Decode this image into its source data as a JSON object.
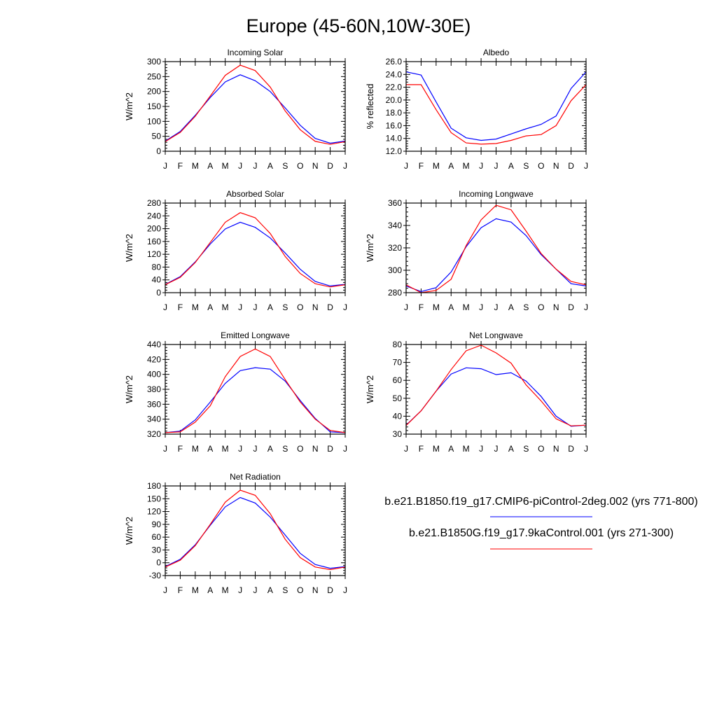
{
  "title": "Europe (45-60N,10W-30E)",
  "legend": {
    "entries": [
      {
        "label": "b.e21.B1850.f19_g17.CMIP6-piControl-2deg.002 (yrs 771-800)",
        "color": "#0000ff"
      },
      {
        "label": "b.e21.B1850G.f19_g17.9kaControl.001 (yrs 271-300)",
        "color": "#ff0000"
      }
    ]
  },
  "chart_data": [
    {
      "type": "line",
      "title": "Incoming Solar",
      "ylabel": "W/m^2",
      "categories": [
        "J",
        "F",
        "M",
        "A",
        "M",
        "J",
        "J",
        "A",
        "S",
        "O",
        "N",
        "D",
        "J"
      ],
      "ylim": [
        0,
        300
      ],
      "yticks": [
        "0",
        "50",
        "100",
        "150",
        "200",
        "250",
        "300"
      ],
      "series": [
        {
          "color": "#0000ff",
          "values": [
            34,
            66,
            120,
            180,
            232,
            256,
            236,
            200,
            145,
            87,
            43,
            27,
            34
          ]
        },
        {
          "color": "#ff0000",
          "values": [
            32,
            63,
            117,
            185,
            254,
            288,
            270,
            215,
            135,
            72,
            33,
            23,
            32
          ]
        }
      ]
    },
    {
      "type": "line",
      "title": "Albedo",
      "ylabel": "% reflected",
      "categories": [
        "J",
        "F",
        "M",
        "A",
        "M",
        "J",
        "J",
        "A",
        "S",
        "O",
        "N",
        "D",
        "J"
      ],
      "ylim": [
        12,
        26
      ],
      "yticks": [
        "12.0",
        "14.0",
        "16.0",
        "18.0",
        "20.0",
        "22.0",
        "24.0",
        "26.0"
      ],
      "series": [
        {
          "color": "#0000ff",
          "values": [
            24.4,
            23.9,
            19.7,
            15.6,
            14.1,
            13.7,
            13.9,
            14.7,
            15.5,
            16.2,
            17.5,
            21.8,
            24.4
          ]
        },
        {
          "color": "#ff0000",
          "values": [
            22.4,
            22.4,
            18.5,
            14.9,
            13.3,
            13.1,
            13.2,
            13.7,
            14.4,
            14.6,
            16.0,
            19.9,
            22.4
          ]
        }
      ]
    },
    {
      "type": "line",
      "title": "Absorbed Solar",
      "ylabel": "W/m^2",
      "categories": [
        "J",
        "F",
        "M",
        "A",
        "M",
        "J",
        "J",
        "A",
        "S",
        "O",
        "N",
        "D",
        "J"
      ],
      "ylim": [
        0,
        280
      ],
      "yticks": [
        "0",
        "40",
        "80",
        "120",
        "160",
        "200",
        "240",
        "280"
      ],
      "series": [
        {
          "color": "#0000ff",
          "values": [
            26,
            50,
            96,
            152,
            199,
            220,
            204,
            171,
            124,
            73,
            35,
            21,
            26
          ]
        },
        {
          "color": "#ff0000",
          "values": [
            25,
            48,
            94,
            157,
            220,
            250,
            234,
            185,
            113,
            60,
            28,
            18,
            25
          ]
        }
      ]
    },
    {
      "type": "line",
      "title": "Incoming Longwave",
      "ylabel": "W/m^2",
      "categories": [
        "J",
        "F",
        "M",
        "A",
        "M",
        "J",
        "J",
        "A",
        "S",
        "O",
        "N",
        "D",
        "J"
      ],
      "ylim": [
        280,
        360
      ],
      "yticks": [
        "280",
        "300",
        "320",
        "340",
        "360"
      ],
      "series": [
        {
          "color": "#0000ff",
          "values": [
            286,
            281,
            284.5,
            298.5,
            321,
            338,
            346,
            343,
            331,
            314,
            301,
            288,
            286
          ]
        },
        {
          "color": "#ff0000",
          "values": [
            287,
            280,
            282,
            292,
            322,
            345,
            358,
            354,
            335,
            315,
            301,
            290,
            287
          ]
        }
      ]
    },
    {
      "type": "line",
      "title": "Emitted Longwave",
      "ylabel": "W/m^2",
      "categories": [
        "J",
        "F",
        "M",
        "A",
        "M",
        "J",
        "J",
        "A",
        "S",
        "O",
        "N",
        "D",
        "J"
      ],
      "ylim": [
        320,
        440
      ],
      "yticks": [
        "320",
        "340",
        "360",
        "380",
        "400",
        "420",
        "440"
      ],
      "series": [
        {
          "color": "#0000ff",
          "values": [
            322,
            324,
            339,
            363,
            388,
            405,
            409,
            407,
            391,
            365,
            341,
            323,
            322
          ]
        },
        {
          "color": "#ff0000",
          "values": [
            322,
            323,
            336,
            358,
            397,
            424,
            434,
            424,
            393,
            363,
            340,
            325,
            322
          ]
        }
      ]
    },
    {
      "type": "line",
      "title": "Net Longwave",
      "ylabel": "W/m^2",
      "categories": [
        "J",
        "F",
        "M",
        "A",
        "M",
        "J",
        "J",
        "A",
        "S",
        "O",
        "N",
        "D",
        "J"
      ],
      "ylim": [
        30,
        80
      ],
      "yticks": [
        "30",
        "40",
        "50",
        "60",
        "70",
        "80"
      ],
      "series": [
        {
          "color": "#0000ff",
          "values": [
            35,
            43,
            54,
            63.5,
            67,
            66.5,
            63.2,
            64.2,
            59.6,
            51,
            40,
            34.4,
            35
          ]
        },
        {
          "color": "#ff0000",
          "values": [
            34.8,
            43,
            54,
            66,
            76.5,
            79.6,
            75.3,
            69.6,
            57.5,
            48.5,
            38.5,
            34.6,
            35
          ]
        }
      ]
    },
    {
      "type": "line",
      "title": "Net Radiation",
      "ylabel": "W/m^2",
      "categories": [
        "J",
        "F",
        "M",
        "A",
        "M",
        "J",
        "J",
        "A",
        "S",
        "O",
        "N",
        "D",
        "J"
      ],
      "ylim": [
        -30,
        180
      ],
      "yticks": [
        "-30",
        "0",
        "30",
        "60",
        "90",
        "120",
        "150",
        "180"
      ],
      "series": [
        {
          "color": "#0000ff",
          "values": [
            -9,
            8,
            42,
            88,
            131,
            153,
            140,
            107,
            65,
            22,
            -4,
            -13,
            -9
          ]
        },
        {
          "color": "#ff0000",
          "values": [
            -10,
            6,
            40,
            90,
            142,
            170,
            158,
            115,
            55,
            12,
            -10,
            -16,
            -10
          ]
        }
      ]
    }
  ]
}
